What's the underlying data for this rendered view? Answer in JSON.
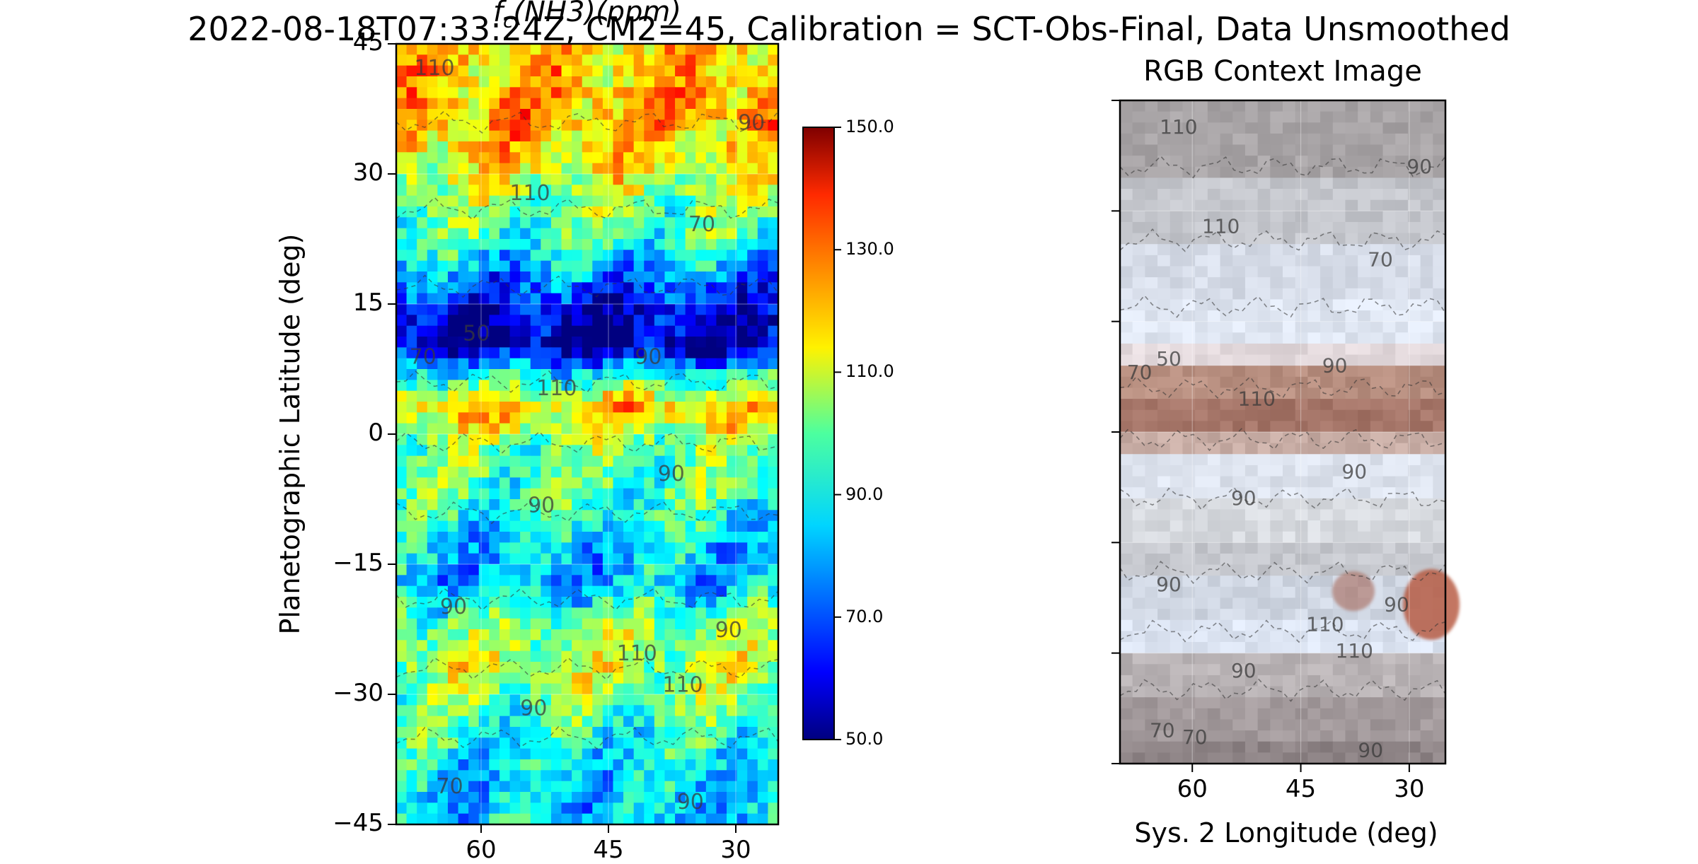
{
  "suptitle": "2022-08-18T07:33:24Z, CM2=45, Calibration = SCT-Obs-Final, Data Unsmoothed",
  "chart_data": [
    {
      "type": "heatmap",
      "title": "f_c(NH3)(ppm)",
      "ylabel": "Planetographic Latitude (deg)",
      "xlabel": "",
      "xlim": [
        70,
        25
      ],
      "ylim": [
        -45,
        45
      ],
      "yticks": [
        "45",
        "30",
        "15",
        "0",
        "−15",
        "−30",
        "−45"
      ],
      "xticks": [
        "60",
        "45",
        "30"
      ],
      "colorbar": {
        "range": [
          50,
          150
        ],
        "ticks": [
          "150.0",
          "130.0",
          "110.0",
          "90.0",
          "70.0",
          "50.0"
        ],
        "colormap": "jet"
      },
      "contour_levels": [
        50,
        70,
        90,
        110
      ],
      "contour_labels": [
        "110",
        "90",
        "110",
        "70",
        "70",
        "50",
        "90",
        "110",
        "90",
        "90",
        "90",
        "110",
        "110",
        "90",
        "90",
        "70",
        "90"
      ],
      "latitude_profile": [
        {
          "lat": 42,
          "value": 118
        },
        {
          "lat": 37,
          "value": 122
        },
        {
          "lat": 32,
          "value": 115
        },
        {
          "lat": 27,
          "value": 102
        },
        {
          "lat": 22,
          "value": 92
        },
        {
          "lat": 18,
          "value": 75
        },
        {
          "lat": 14,
          "value": 58
        },
        {
          "lat": 10,
          "value": 54
        },
        {
          "lat": 7,
          "value": 88
        },
        {
          "lat": 3,
          "value": 118
        },
        {
          "lat": -2,
          "value": 98
        },
        {
          "lat": -7,
          "value": 95
        },
        {
          "lat": -12,
          "value": 86
        },
        {
          "lat": -17,
          "value": 80
        },
        {
          "lat": -22,
          "value": 100
        },
        {
          "lat": -27,
          "value": 106
        },
        {
          "lat": -32,
          "value": 96
        },
        {
          "lat": -37,
          "value": 88
        },
        {
          "lat": -42,
          "value": 82
        }
      ]
    },
    {
      "type": "heatmap",
      "title": "RGB Context Image",
      "xlabel": "Sys. 2 Longitude (deg)",
      "ylabel": "",
      "xlim": [
        70,
        25
      ],
      "ylim": [
        -45,
        45
      ],
      "xticks": [
        "60",
        "45",
        "30"
      ],
      "contour_labels": [
        "110",
        "110",
        "90",
        "70",
        "50",
        "70",
        "90",
        "110",
        "90",
        "90",
        "90",
        "110",
        "90",
        "110",
        "90",
        "70",
        "70",
        "90"
      ]
    }
  ]
}
